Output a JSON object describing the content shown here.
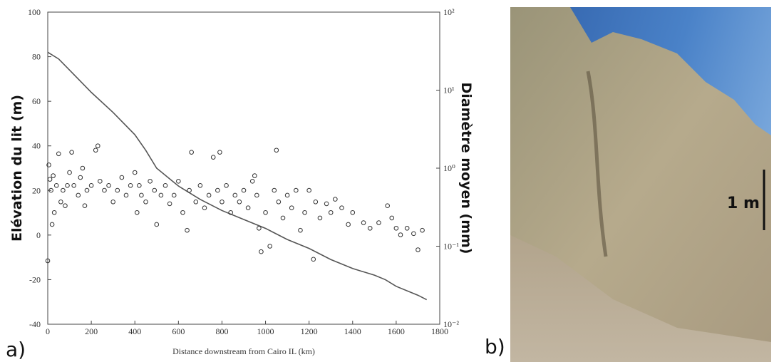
{
  "chart_data": {
    "type": "line",
    "panel_label": "a)",
    "xlabel": "Distance downstream from Cairo IL (km)",
    "ylabel": "Elévation du lit (m)",
    "y2label": "Diamètre moyen (mm)",
    "xlim": [
      0,
      1800
    ],
    "xticks": [
      0,
      200,
      400,
      600,
      800,
      1000,
      1200,
      1400,
      1600,
      1800
    ],
    "ylim": [
      -40,
      100
    ],
    "yticks": [
      -40,
      -20,
      0,
      20,
      40,
      60,
      80,
      100
    ],
    "y2lim": [
      0.01,
      100
    ],
    "y2log": true,
    "y2ticks": [
      {
        "value": 0.01,
        "label": "10⁻²"
      },
      {
        "value": 0.1,
        "label": "10⁻¹"
      },
      {
        "value": 1,
        "label": "10⁰"
      },
      {
        "value": 10,
        "label": "10¹"
      },
      {
        "value": 100,
        "label": "10²"
      }
    ],
    "series": [
      {
        "type": "line",
        "color": "#555555",
        "x": [
          0,
          50,
          100,
          200,
          300,
          400,
          450,
          500,
          600,
          700,
          800,
          900,
          1000,
          1100,
          1200,
          1300,
          1400,
          1500,
          1550,
          1600,
          1700,
          1740
        ],
        "values": [
          82,
          79,
          74,
          64,
          55,
          45,
          38,
          30,
          22,
          16,
          11,
          7,
          3,
          -2,
          -6,
          -11,
          -15,
          -18,
          -20,
          -23,
          -27,
          -29
        ]
      },
      {
        "type": "scatter",
        "axis": "y2",
        "color": "#333333",
        "x": [
          0,
          5,
          10,
          15,
          20,
          25,
          30,
          40,
          50,
          60,
          70,
          80,
          90,
          100,
          110,
          120,
          140,
          150,
          160,
          170,
          180,
          200,
          220,
          230,
          240,
          260,
          280,
          300,
          320,
          340,
          360,
          380,
          400,
          410,
          420,
          430,
          450,
          470,
          490,
          500,
          520,
          540,
          560,
          580,
          600,
          620,
          640,
          650,
          660,
          680,
          700,
          720,
          740,
          760,
          780,
          790,
          800,
          820,
          840,
          860,
          880,
          900,
          920,
          940,
          950,
          960,
          970,
          980,
          1000,
          1020,
          1040,
          1050,
          1060,
          1080,
          1100,
          1120,
          1140,
          1160,
          1180,
          1200,
          1220,
          1230,
          1250,
          1280,
          1300,
          1320,
          1350,
          1380,
          1400,
          1450,
          1480,
          1520,
          1560,
          1580,
          1600,
          1620,
          1650,
          1680,
          1700,
          1720
        ],
        "values": [
          0.065,
          1.1,
          0.72,
          0.52,
          0.19,
          0.8,
          0.27,
          0.6,
          1.53,
          0.37,
          0.52,
          0.33,
          0.6,
          0.88,
          1.6,
          0.6,
          0.45,
          0.76,
          1.0,
          0.33,
          0.52,
          0.6,
          1.7,
          1.93,
          0.68,
          0.52,
          0.6,
          0.37,
          0.52,
          0.76,
          0.45,
          0.6,
          0.88,
          0.27,
          0.6,
          0.45,
          0.37,
          0.68,
          0.52,
          0.19,
          0.45,
          0.6,
          0.35,
          0.45,
          0.68,
          0.27,
          0.16,
          0.52,
          1.6,
          0.37,
          0.6,
          0.31,
          0.45,
          1.38,
          0.52,
          1.6,
          0.37,
          0.6,
          0.27,
          0.45,
          0.37,
          0.52,
          0.31,
          0.68,
          0.8,
          0.45,
          0.17,
          0.085,
          0.27,
          0.1,
          0.52,
          1.7,
          0.37,
          0.23,
          0.45,
          0.31,
          0.52,
          0.16,
          0.27,
          0.52,
          0.068,
          0.37,
          0.23,
          0.35,
          0.27,
          0.4,
          0.31,
          0.19,
          0.27,
          0.2,
          0.17,
          0.2,
          0.33,
          0.23,
          0.17,
          0.14,
          0.17,
          0.145,
          0.09,
          0.16
        ]
      }
    ]
  },
  "photo": {
    "panel_label": "b)",
    "scale_label": "1 m"
  }
}
